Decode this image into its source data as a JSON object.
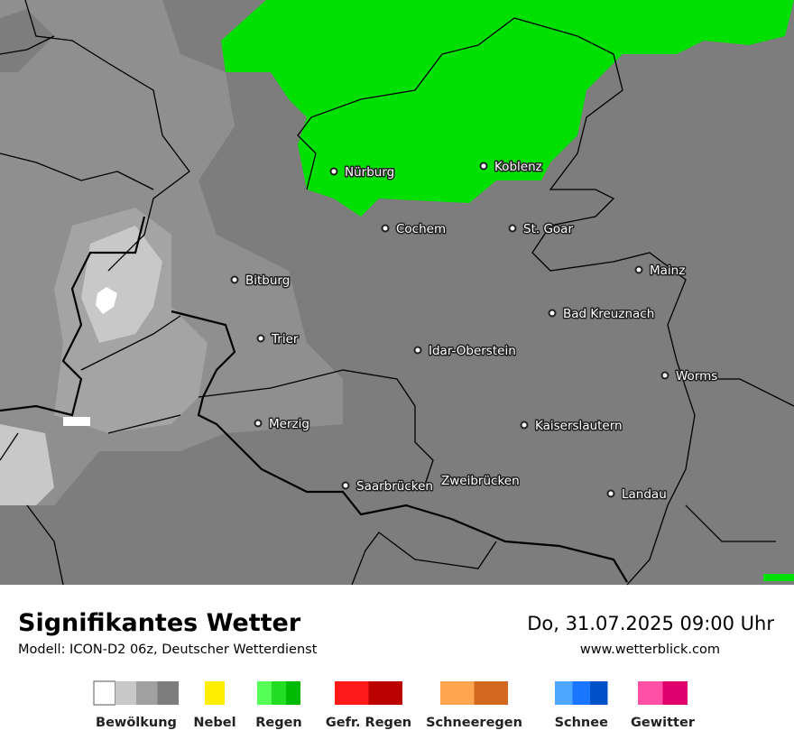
{
  "map": {
    "cities": [
      "Nürburg",
      "Koblenz",
      "Cochem",
      "St. Goar",
      "Mainz",
      "Bitburg",
      "Bad Kreuznach",
      "Trier",
      "Idar-Oberstein",
      "Worms",
      "Merzig",
      "Kaiserslautern",
      "Saarbrücken",
      "Zweibrücken",
      "Landau"
    ]
  },
  "footer": {
    "title": "Signifikantes Wetter",
    "subtitle": "Modell: ICON-D2 06z, Deutscher Wetterdienst",
    "datetime": "Do, 31.07.2025 09:00 Uhr",
    "website": "www.wetterblick.com"
  },
  "legend": [
    {
      "label": "Bewölkung",
      "colors": [
        "#ffffff",
        "#c8c8c8",
        "#a0a0a0",
        "#7d7d7d"
      ]
    },
    {
      "label": "Nebel",
      "colors": [
        "#ffee00"
      ]
    },
    {
      "label": "Regen",
      "colors": [
        "#55ff55",
        "#22dd22",
        "#00bb00"
      ]
    },
    {
      "label": "Gefr. Regen",
      "colors": [
        "#ff1a1a",
        "#bb0000"
      ]
    },
    {
      "label": "Schneeregen",
      "colors": [
        "#ffa54f",
        "#d2691e"
      ]
    },
    {
      "label": "Schnee",
      "colors": [
        "#4da6ff",
        "#1a75ff",
        "#0050c8"
      ]
    },
    {
      "label": "Gewitter",
      "colors": [
        "#ff4fa7",
        "#e0006f"
      ]
    }
  ]
}
